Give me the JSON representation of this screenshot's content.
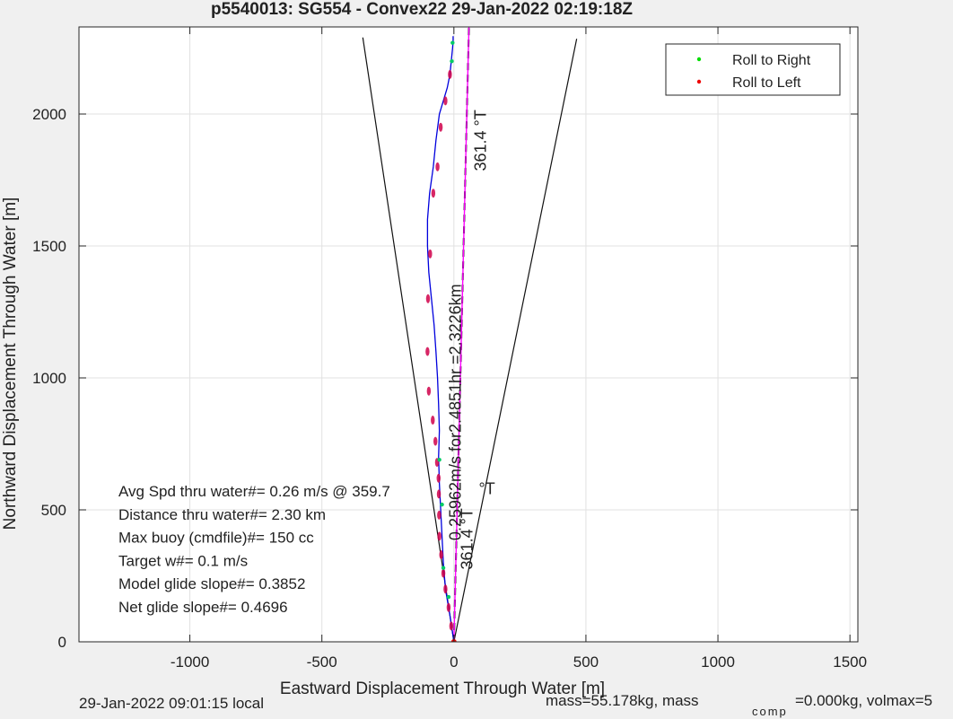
{
  "chart_data": {
    "type": "line",
    "title": "p5540013: SG554 - Convex22 29-Jan-2022 02:19:18Z",
    "xlabel": "Eastward Displacement Through Water [m]",
    "ylabel": "Northward Displacement Through Water [m]",
    "xlim": [
      -1420,
      1530
    ],
    "ylim": [
      0,
      2330
    ],
    "xticks": [
      -1000,
      -500,
      0,
      500,
      1000,
      1500
    ],
    "yticks": [
      0,
      500,
      1000,
      1500,
      2000
    ],
    "grid": true,
    "legend_position": "top-right",
    "legend": [
      {
        "label": "Roll to Right",
        "color": "#00dd00"
      },
      {
        "label": "Roll to Left",
        "color": "#ee0000"
      }
    ],
    "track": {
      "color": "#0000dd",
      "x": [
        0,
        -15,
        -32,
        -40,
        -45,
        -50,
        -55,
        -58,
        -55,
        -58,
        -62,
        -68,
        -75,
        -85,
        -95,
        -100,
        -100,
        -92,
        -78,
        -68,
        -55,
        -40,
        -25,
        -15,
        -10,
        -5,
        -3,
        -3
      ],
      "y": [
        0,
        100,
        200,
        300,
        400,
        500,
        600,
        700,
        800,
        900,
        1000,
        1100,
        1200,
        1300,
        1400,
        1500,
        1600,
        1700,
        1800,
        1900,
        2000,
        2050,
        2100,
        2150,
        2200,
        2250,
        2280,
        2295
      ]
    },
    "roll_left_points": {
      "x": [
        -10,
        -20,
        -32,
        -40,
        -48,
        -55,
        -56,
        -57,
        -58,
        -64,
        -70,
        -80,
        -95,
        -100,
        -98,
        -90,
        -78,
        -62,
        -50,
        -32,
        -15
      ],
      "y": [
        60,
        130,
        200,
        260,
        330,
        400,
        480,
        560,
        620,
        680,
        760,
        840,
        950,
        1100,
        1300,
        1470,
        1700,
        1800,
        1950,
        2050,
        2150
      ]
    },
    "roll_right_points": {
      "x": [
        -40,
        -20,
        -45,
        -55,
        -8,
        -5
      ],
      "y": [
        280,
        170,
        520,
        690,
        2200,
        2270
      ]
    },
    "cone_lines": [
      {
        "x": [
          0,
          -345
        ],
        "y": [
          0,
          2290
        ]
      },
      {
        "x": [
          0,
          465
        ],
        "y": [
          0,
          2285
        ]
      }
    ],
    "heading_lines": [
      {
        "color": "#000000",
        "dash": true,
        "x": [
          0,
          57
        ],
        "y": [
          0,
          2330
        ]
      },
      {
        "color": "#ff00ff",
        "dash": false,
        "x": [
          0,
          57
        ],
        "y": [
          0,
          2330
        ]
      }
    ],
    "annotations": [
      {
        "text": "361.4  °T",
        "x": 122,
        "y": 1900,
        "rotate": -90
      },
      {
        "text": "361.4  °T",
        "x": 70,
        "y": 390,
        "rotate": -90
      },
      {
        "text": "0.25962m/s for2.4851hr =2.3226km",
        "x": 26,
        "y": 870,
        "rotate": -90
      },
      {
        "text": "°T",
        "x": 125,
        "y": 560,
        "rotate": 0
      }
    ],
    "stats": [
      "Avg Spd thru water#=  0.26 m/s @ 359.7",
      "Distance thru water#=  2.30 km",
      "Max buoy (cmdfile)#= 150 cc",
      "Target w#= 0.1 m/s",
      "Model glide slope#= 0.3852",
      "Net glide slope#= 0.4696"
    ]
  },
  "footer": {
    "local_time": "29-Jan-2022 09:01:15 local",
    "mass": "mass=55.178kg, mass",
    "comp_sub": "comp",
    "comp_rest": "=0.000kg, volmax=5"
  }
}
